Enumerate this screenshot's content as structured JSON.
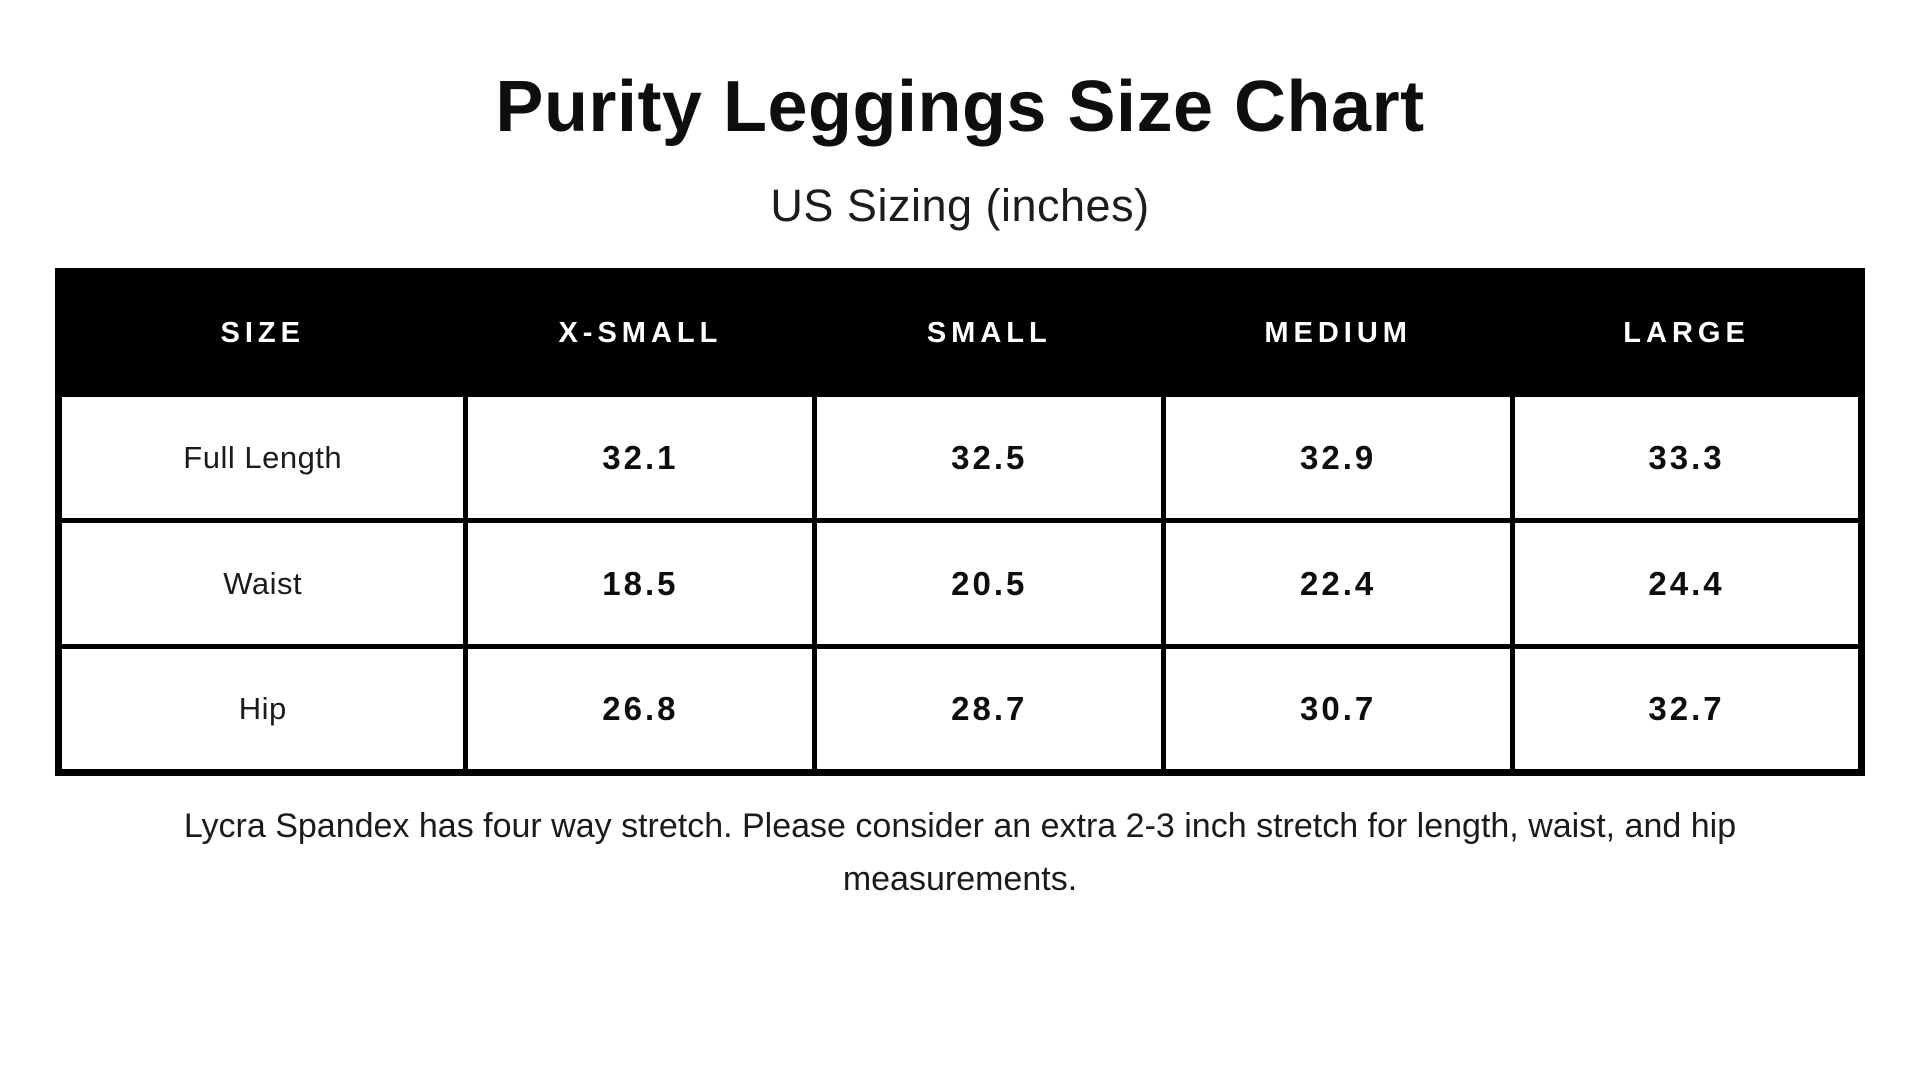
{
  "chart_data": {
    "type": "table",
    "title": "Purity Leggings Size Chart",
    "subtitle": "US Sizing (inches)",
    "columns": [
      "SIZE",
      "X-SMALL",
      "SMALL",
      "MEDIUM",
      "LARGE"
    ],
    "rows": [
      {
        "label": "Full Length",
        "values": [
          "32.1",
          "32.5",
          "32.9",
          "33.3"
        ]
      },
      {
        "label": "Waist",
        "values": [
          "18.5",
          "20.5",
          "22.4",
          "24.4"
        ]
      },
      {
        "label": "Hip",
        "values": [
          "26.8",
          "28.7",
          "30.7",
          "32.7"
        ]
      }
    ],
    "footnote": "Lycra Spandex has four way stretch. Please consider an extra 2-3 inch stretch for length, waist, and hip measurements.",
    "units": "inches"
  },
  "colors": {
    "background": "#ffffff",
    "header_background": "#000000",
    "header_text": "#ffffff",
    "border": "#000000",
    "body_text": "#1b1b1b"
  }
}
